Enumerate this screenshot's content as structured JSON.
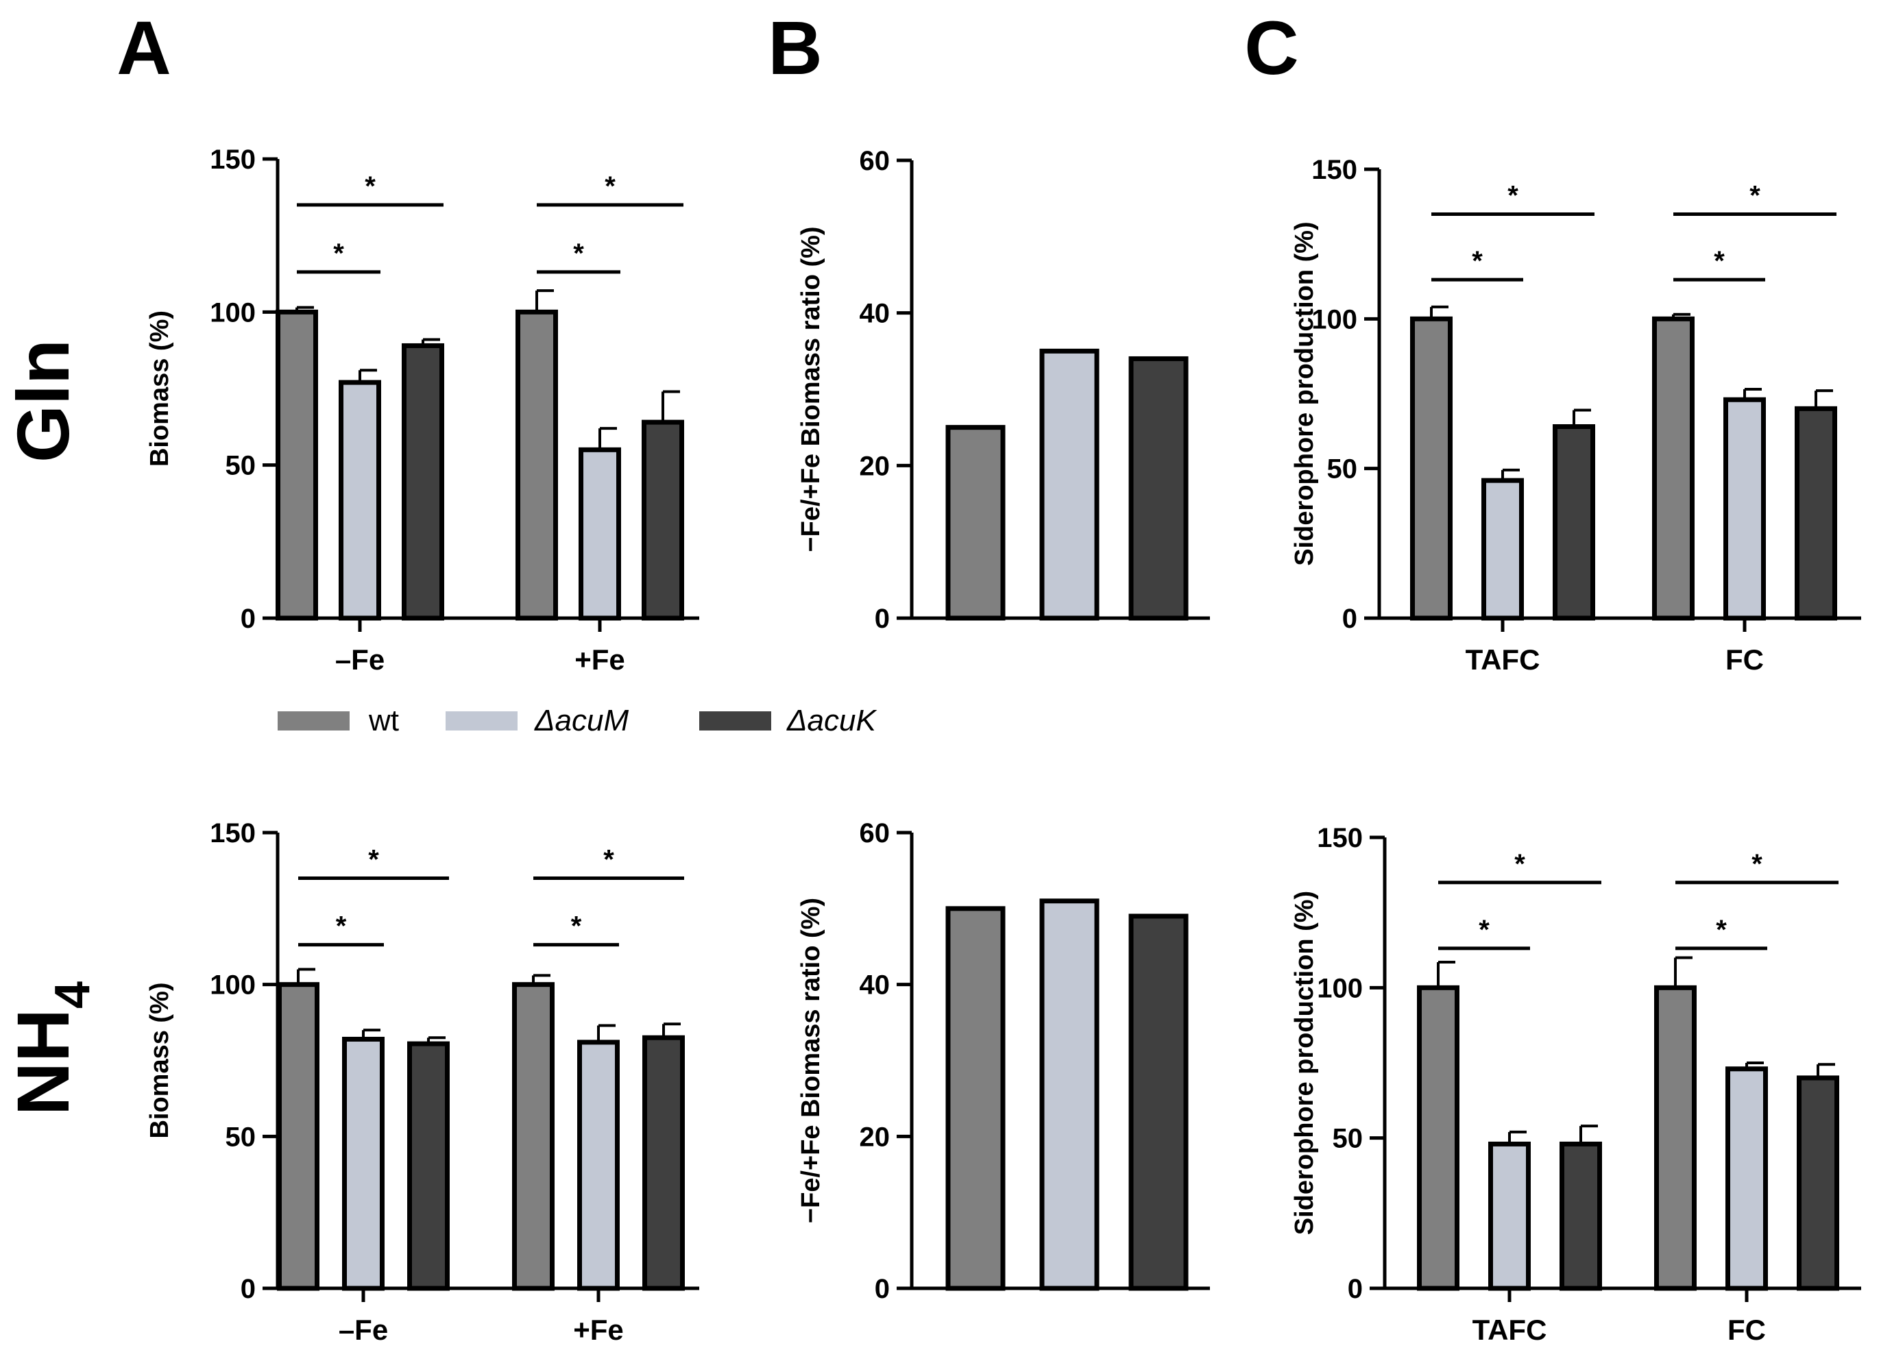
{
  "figure": {
    "panel_letters": [
      "A",
      "B",
      "C"
    ],
    "row_labels": [
      "Gln",
      "NH4"
    ],
    "colors": {
      "wt": "#808080",
      "acuM": "#c2c8d4",
      "acuK": "#404040",
      "axis": "#000000"
    },
    "legend": [
      {
        "name": "wt",
        "italic": false,
        "color": "#808080"
      },
      {
        "name": "ΔacuM",
        "italic": true,
        "color": "#c2c8d4"
      },
      {
        "name": "ΔacuK",
        "italic": true,
        "color": "#404040"
      }
    ]
  },
  "chart_data": [
    {
      "id": "A_Gln",
      "panel": "A",
      "row": "Gln",
      "type": "bar",
      "ylabel": "Biomass (%)",
      "ylim": [
        0,
        150
      ],
      "yticks": [
        0,
        50,
        100,
        150
      ],
      "categories": [
        "–Fe",
        "+Fe"
      ],
      "series": [
        {
          "name": "wt",
          "values": [
            100,
            100
          ],
          "errors": [
            1.5,
            7
          ]
        },
        {
          "name": "ΔacuM",
          "values": [
            77,
            55
          ],
          "errors": [
            4,
            7
          ]
        },
        {
          "name": "ΔacuK",
          "values": [
            89,
            64
          ],
          "errors": [
            2,
            10
          ]
        }
      ],
      "significance": [
        {
          "group": 0,
          "from": 0,
          "to": 1,
          "label": "*"
        },
        {
          "group": 0,
          "from": 0,
          "to": 2,
          "label": "*"
        },
        {
          "group": 1,
          "from": 0,
          "to": 1,
          "label": "*"
        },
        {
          "group": 1,
          "from": 0,
          "to": 2,
          "label": "*"
        }
      ]
    },
    {
      "id": "B_Gln",
      "panel": "B",
      "row": "Gln",
      "type": "bar",
      "ylabel": "−Fe/+Fe Biomass ratio (%)",
      "ylim": [
        0,
        60
      ],
      "yticks": [
        0,
        20,
        40,
        60
      ],
      "categories": [
        "wt",
        "ΔacuM",
        "ΔacuK"
      ],
      "values": [
        25,
        35,
        34
      ]
    },
    {
      "id": "C_Gln",
      "panel": "C",
      "row": "Gln",
      "type": "bar",
      "ylabel": "Siderophore production (%)",
      "ylim": [
        0,
        150
      ],
      "yticks": [
        0,
        50,
        100,
        150
      ],
      "categories": [
        "TAFC",
        "FC"
      ],
      "series": [
        {
          "name": "wt",
          "values": [
            100,
            100
          ],
          "errors": [
            4,
            1.5
          ]
        },
        {
          "name": "ΔacuM",
          "values": [
            46,
            73
          ],
          "errors": [
            3.5,
            3.5
          ]
        },
        {
          "name": "ΔacuK",
          "values": [
            64,
            70
          ],
          "errors": [
            5.5,
            6
          ]
        }
      ],
      "significance": [
        {
          "group": 0,
          "from": 0,
          "to": 1,
          "label": "*"
        },
        {
          "group": 0,
          "from": 0,
          "to": 2,
          "label": "*"
        },
        {
          "group": 1,
          "from": 0,
          "to": 1,
          "label": "*"
        },
        {
          "group": 1,
          "from": 0,
          "to": 2,
          "label": "*"
        }
      ]
    },
    {
      "id": "A_NH4",
      "panel": "A",
      "row": "NH4",
      "type": "bar",
      "ylabel": "Biomass (%)",
      "ylim": [
        0,
        150
      ],
      "yticks": [
        0,
        50,
        100,
        150
      ],
      "categories": [
        "–Fe",
        "+Fe"
      ],
      "series": [
        {
          "name": "wt",
          "values": [
            100,
            100
          ],
          "errors": [
            5,
            3
          ]
        },
        {
          "name": "ΔacuM",
          "values": [
            82,
            81
          ],
          "errors": [
            3,
            5.5
          ]
        },
        {
          "name": "ΔacuK",
          "values": [
            80.5,
            82.5
          ],
          "errors": [
            2,
            4.5
          ]
        }
      ],
      "significance": [
        {
          "group": 0,
          "from": 0,
          "to": 1,
          "label": "*"
        },
        {
          "group": 0,
          "from": 0,
          "to": 2,
          "label": "*"
        },
        {
          "group": 1,
          "from": 0,
          "to": 1,
          "label": "*"
        },
        {
          "group": 1,
          "from": 0,
          "to": 2,
          "label": "*"
        }
      ]
    },
    {
      "id": "B_NH4",
      "panel": "B",
      "row": "NH4",
      "type": "bar",
      "ylabel": "−Fe/+Fe Biomass ratio (%)",
      "ylim": [
        0,
        60
      ],
      "yticks": [
        0,
        20,
        40,
        60
      ],
      "categories": [
        "wt",
        "ΔacuM",
        "ΔacuK"
      ],
      "values": [
        50,
        51,
        49
      ]
    },
    {
      "id": "C_NH4",
      "panel": "C",
      "row": "NH4",
      "type": "bar",
      "ylabel": "Siderophore production (%)",
      "ylim": [
        0,
        150
      ],
      "yticks": [
        0,
        50,
        100,
        150
      ],
      "categories": [
        "TAFC",
        "FC"
      ],
      "series": [
        {
          "name": "wt",
          "values": [
            100,
            100
          ],
          "errors": [
            8.5,
            10
          ]
        },
        {
          "name": "ΔacuM",
          "values": [
            48,
            73
          ],
          "errors": [
            4,
            2
          ]
        },
        {
          "name": "ΔacuK",
          "values": [
            48,
            70
          ],
          "errors": [
            6,
            4.5
          ]
        }
      ],
      "significance": [
        {
          "group": 0,
          "from": 0,
          "to": 1,
          "label": "*"
        },
        {
          "group": 0,
          "from": 0,
          "to": 2,
          "label": "*"
        },
        {
          "group": 1,
          "from": 0,
          "to": 1,
          "label": "*"
        },
        {
          "group": 1,
          "from": 0,
          "to": 2,
          "label": "*"
        }
      ]
    }
  ]
}
